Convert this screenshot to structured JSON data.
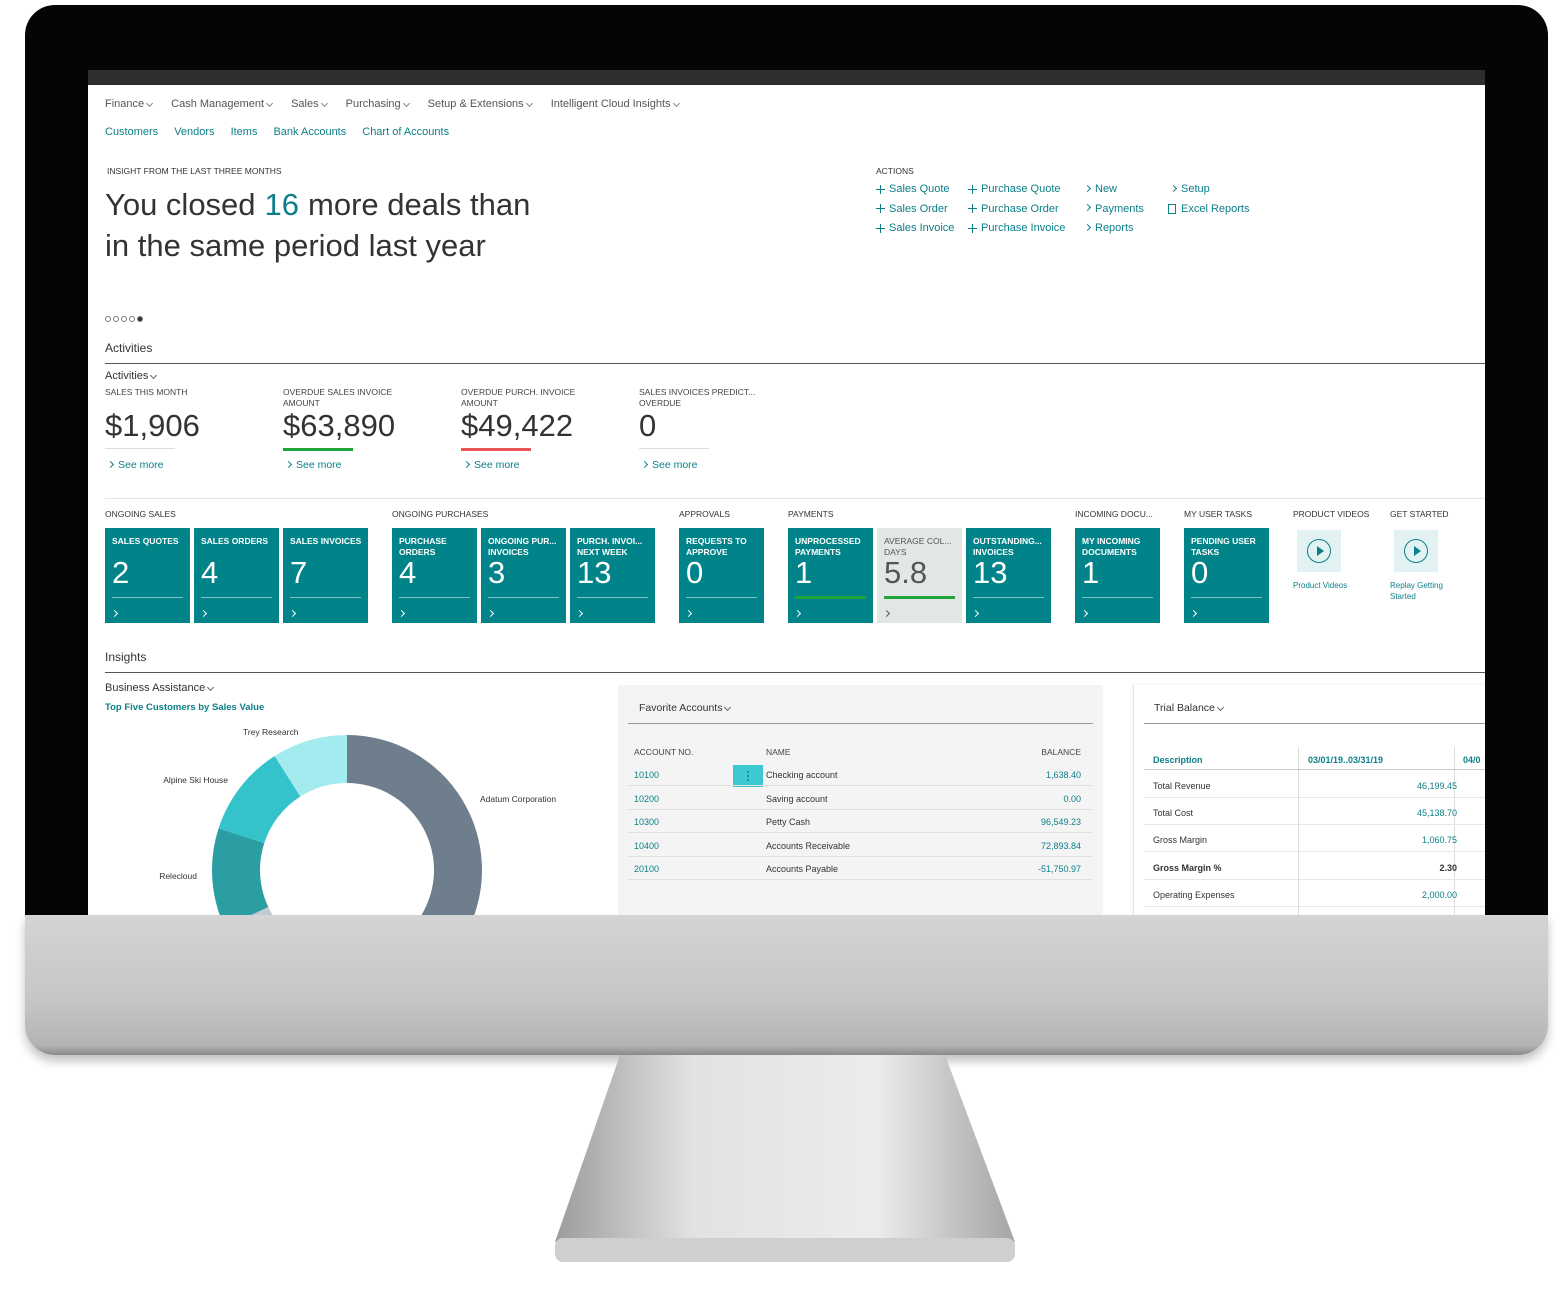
{
  "nav": {
    "menus": [
      "Finance",
      "Cash Management",
      "Sales",
      "Purchasing",
      "Setup & Extensions",
      "Intelligent Cloud Insights"
    ],
    "links": [
      "Customers",
      "Vendors",
      "Items",
      "Bank Accounts",
      "Chart of Accounts"
    ]
  },
  "headline": {
    "eyebrow": "INSIGHT FROM THE LAST THREE MONTHS",
    "text_before": "You closed",
    "number": 16,
    "text_after": "more deals than",
    "line2": "in the same period last year"
  },
  "actions": {
    "title": "ACTIONS",
    "columns": [
      [
        "Sales Quote",
        "Sales Order",
        "Sales Invoice"
      ],
      [
        "Purchase Quote",
        "Purchase Order",
        "Purchase Invoice"
      ],
      [
        "New",
        "Payments",
        "Reports"
      ],
      [
        "Setup",
        "Excel Reports"
      ]
    ]
  },
  "activities": {
    "section": "Activities",
    "group": "Activities",
    "kpis": [
      {
        "label": "SALES THIS MONTH",
        "value": "$1,906",
        "link": "See more"
      },
      {
        "label": "OVERDUE SALES INVOICE AMOUNT",
        "value": "$63,890",
        "link": "See more",
        "accent": "#1fa33a"
      },
      {
        "label": "OVERDUE PURCH. INVOICE AMOUNT",
        "value": "$49,422",
        "link": "See more",
        "accent": "#e85454"
      },
      {
        "label": "SALES INVOICES PREDICT... OVERDUE",
        "value": "0",
        "link": "See more"
      }
    ],
    "tile_groups": [
      {
        "title": "ONGOING SALES",
        "tiles": [
          {
            "label": "SALES QUOTES",
            "value": 2
          },
          {
            "label": "SALES ORDERS",
            "value": 4
          },
          {
            "label": "SALES INVOICES",
            "value": 7
          }
        ]
      },
      {
        "title": "ONGOING PURCHASES",
        "tiles": [
          {
            "label": "PURCHASE ORDERS",
            "value": 4
          },
          {
            "label": "ONGOING PUR... INVOICES",
            "value": 3
          },
          {
            "label": "PURCH. INVOI... NEXT WEEK",
            "value": 13
          }
        ]
      },
      {
        "title": "APPROVALS",
        "tiles": [
          {
            "label": "REQUESTS TO APPROVE",
            "value": 0
          }
        ]
      },
      {
        "title": "PAYMENTS",
        "tiles": [
          {
            "label": "UNPROCESSED PAYMENTS",
            "value": 1,
            "bar": "#1fa33a"
          },
          {
            "label": "AVERAGE COL... DAYS",
            "value": 5.8,
            "bar": "#1fa33a",
            "light": true
          },
          {
            "label": "OUTSTANDING... INVOICES",
            "value": 13
          }
        ]
      },
      {
        "title": "INCOMING DOCU...",
        "tiles": [
          {
            "label": "MY INCOMING DOCUMENTS",
            "value": 1
          }
        ]
      },
      {
        "title": "MY USER TASKS",
        "tiles": [
          {
            "label": "PENDING USER TASKS",
            "value": 0
          }
        ]
      }
    ],
    "video_groups": [
      {
        "title": "PRODUCT VIDEOS",
        "label": "Product Videos"
      },
      {
        "title": "GET STARTED",
        "label": "Replay Getting Started"
      }
    ]
  },
  "insights": {
    "section": "Insights",
    "group": "Business Assistance"
  },
  "chart_data": {
    "type": "donut",
    "title": "Top Five Customers by Sales Value",
    "categories": [
      "Adatum Corporation",
      null,
      "Relecloud",
      "Alpine Ski House",
      "Trey Research"
    ],
    "values": [
      65,
      3,
      12,
      11,
      9
    ],
    "colors": [
      "#6e7e8c",
      "#c3cbd1",
      "#2b9ea4",
      "#35c3cb",
      "#a4ebef"
    ]
  },
  "favorite_accounts": {
    "title": "Favorite Accounts",
    "columns": [
      "ACCOUNT NO.",
      "NAME",
      "BALANCE"
    ],
    "rows": [
      [
        "10100",
        "Checking account",
        "1,638.40"
      ],
      [
        "10200",
        "Saving account",
        "0.00"
      ],
      [
        "10300",
        "Petty Cash",
        "96,549.23"
      ],
      [
        "10400",
        "Accounts Receivable",
        "72,893.84"
      ],
      [
        "20100",
        "Accounts Payable",
        "-51,750.97"
      ]
    ]
  },
  "trial_balance": {
    "title": "Trial Balance",
    "columns": [
      "Description",
      "03/01/19..03/31/19",
      "04/0"
    ],
    "rows": [
      {
        "label": "Total Revenue",
        "value": "46,199.45"
      },
      {
        "label": "Total Cost",
        "value": "45,138.70"
      },
      {
        "label": "Gross Margin",
        "value": "1,060.75"
      },
      {
        "label": "Gross Margin %",
        "value": "2.30",
        "bold": true
      },
      {
        "label": "Operating Expenses",
        "value": "2,000.00"
      }
    ]
  }
}
